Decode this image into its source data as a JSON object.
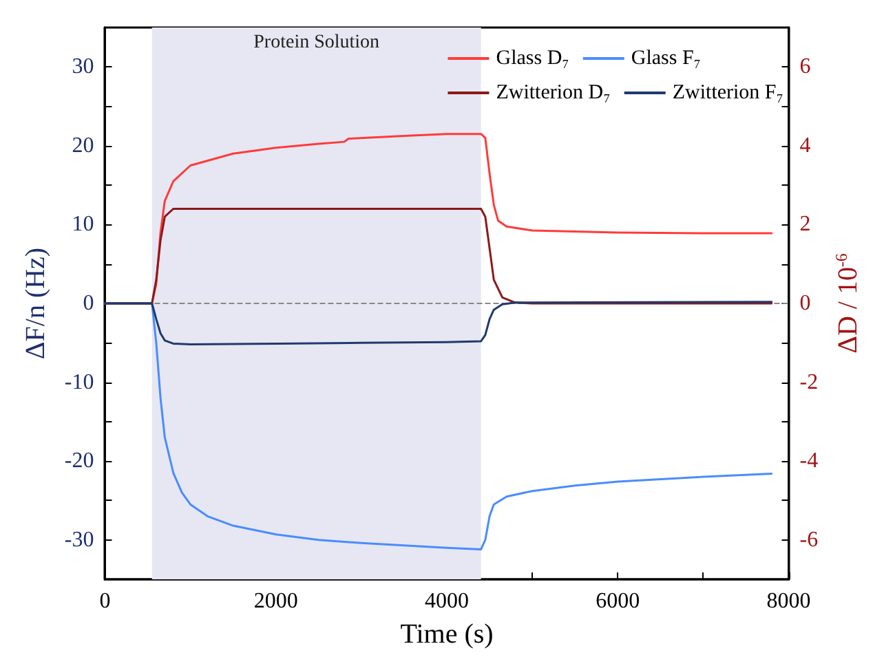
{
  "chart_data": {
    "type": "line",
    "xlabel": "Time (s)",
    "ylabel": "ΔF/n (Hz)",
    "y2label": "ΔD / 10$^{-6}$",
    "xlim": [
      0,
      8000
    ],
    "xticks": [
      0,
      {
        "value": 1000,
        "label": null
      },
      2000,
      {
        "value": 3000,
        "label": null
      },
      4000,
      {
        "value": 5000,
        "label": null
      },
      6000,
      {
        "value": 7000,
        "label": null
      },
      8000
    ],
    "ylim": [
      -35,
      35
    ],
    "yticks": [
      -30,
      {
        "value": -25,
        "label": null
      },
      -20,
      {
        "value": -15,
        "label": null
      },
      -10,
      {
        "value": -5,
        "label": null
      },
      0,
      {
        "value": 5,
        "label": null
      },
      10,
      {
        "value": 15,
        "label": null
      },
      20,
      {
        "value": 25,
        "label": null
      },
      30
    ],
    "y2lim": [
      -7,
      7
    ],
    "y2ticks": [
      -6,
      {
        "value": -5,
        "label": null
      },
      -4,
      {
        "value": -3,
        "label": null
      },
      -2,
      {
        "value": -1,
        "label": null
      },
      0,
      {
        "value": 1,
        "label": null
      },
      2,
      {
        "value": 3,
        "label": null
      },
      4,
      {
        "value": 5,
        "label": null
      },
      6
    ],
    "grid": false,
    "legend": "top right",
    "marker": "none",
    "line_style": "solid",
    "ref_lines": [
      {
        "axis": "y",
        "value": 0,
        "color": "#888888",
        "line_style": "dashed"
      }
    ],
    "bands": [
      {
        "axis": "x",
        "from": 550,
        "to": 4400,
        "label": "Protein Solution",
        "color": "#e6e7f2"
      }
    ],
    "series": [
      {
        "name": "Glass D₇",
        "color": "#ff3b3b",
        "axis": "y2",
        "x": [
          0,
          550,
          600,
          650,
          700,
          800,
          1000,
          1500,
          2000,
          2500,
          2800,
          2850,
          3500,
          4000,
          4400,
          4450,
          4500,
          4550,
          4600,
          4700,
          5000,
          6000,
          7000,
          7800
        ],
        "values": [
          0,
          0,
          0.5,
          1.8,
          2.6,
          3.1,
          3.5,
          3.8,
          3.95,
          4.05,
          4.1,
          4.18,
          4.25,
          4.3,
          4.3,
          4.2,
          3.3,
          2.5,
          2.1,
          1.95,
          1.85,
          1.8,
          1.78,
          1.78
        ]
      },
      {
        "name": "Glass F₇",
        "color": "#4a8cff",
        "axis": "y",
        "x": [
          0,
          550,
          600,
          650,
          700,
          800,
          900,
          1000,
          1200,
          1500,
          2000,
          2500,
          3000,
          3500,
          4000,
          4400,
          4450,
          4500,
          4550,
          4700,
          5000,
          5500,
          6000,
          7000,
          7800
        ],
        "values": [
          0,
          0,
          -5,
          -12,
          -17,
          -21.5,
          -24,
          -25.5,
          -27,
          -28.2,
          -29.3,
          -30,
          -30.4,
          -30.7,
          -31,
          -31.2,
          -30,
          -27,
          -25.5,
          -24.5,
          -23.8,
          -23.1,
          -22.6,
          -22,
          -21.6
        ]
      },
      {
        "name": "Zwitterion D₇",
        "color": "#8b1a1a",
        "axis": "y2",
        "x": [
          0,
          550,
          600,
          650,
          700,
          800,
          4400,
          4450,
          4500,
          4550,
          4650,
          4800,
          5000,
          7800
        ],
        "values": [
          0,
          0,
          0.6,
          1.6,
          2.2,
          2.4,
          2.4,
          2.2,
          1.4,
          0.6,
          0.15,
          0.02,
          0,
          0
        ]
      },
      {
        "name": "Zwitterion F₇",
        "color": "#1f3a6e",
        "axis": "y",
        "x": [
          0,
          550,
          600,
          650,
          700,
          800,
          1000,
          2000,
          3000,
          4000,
          4400,
          4450,
          4500,
          4550,
          4650,
          4800,
          7800
        ],
        "values": [
          0,
          0,
          -2,
          -3.8,
          -4.7,
          -5.1,
          -5.2,
          -5.1,
          -5,
          -4.9,
          -4.8,
          -4,
          -2,
          -0.8,
          -0.1,
          0.1,
          0.2
        ]
      }
    ]
  }
}
